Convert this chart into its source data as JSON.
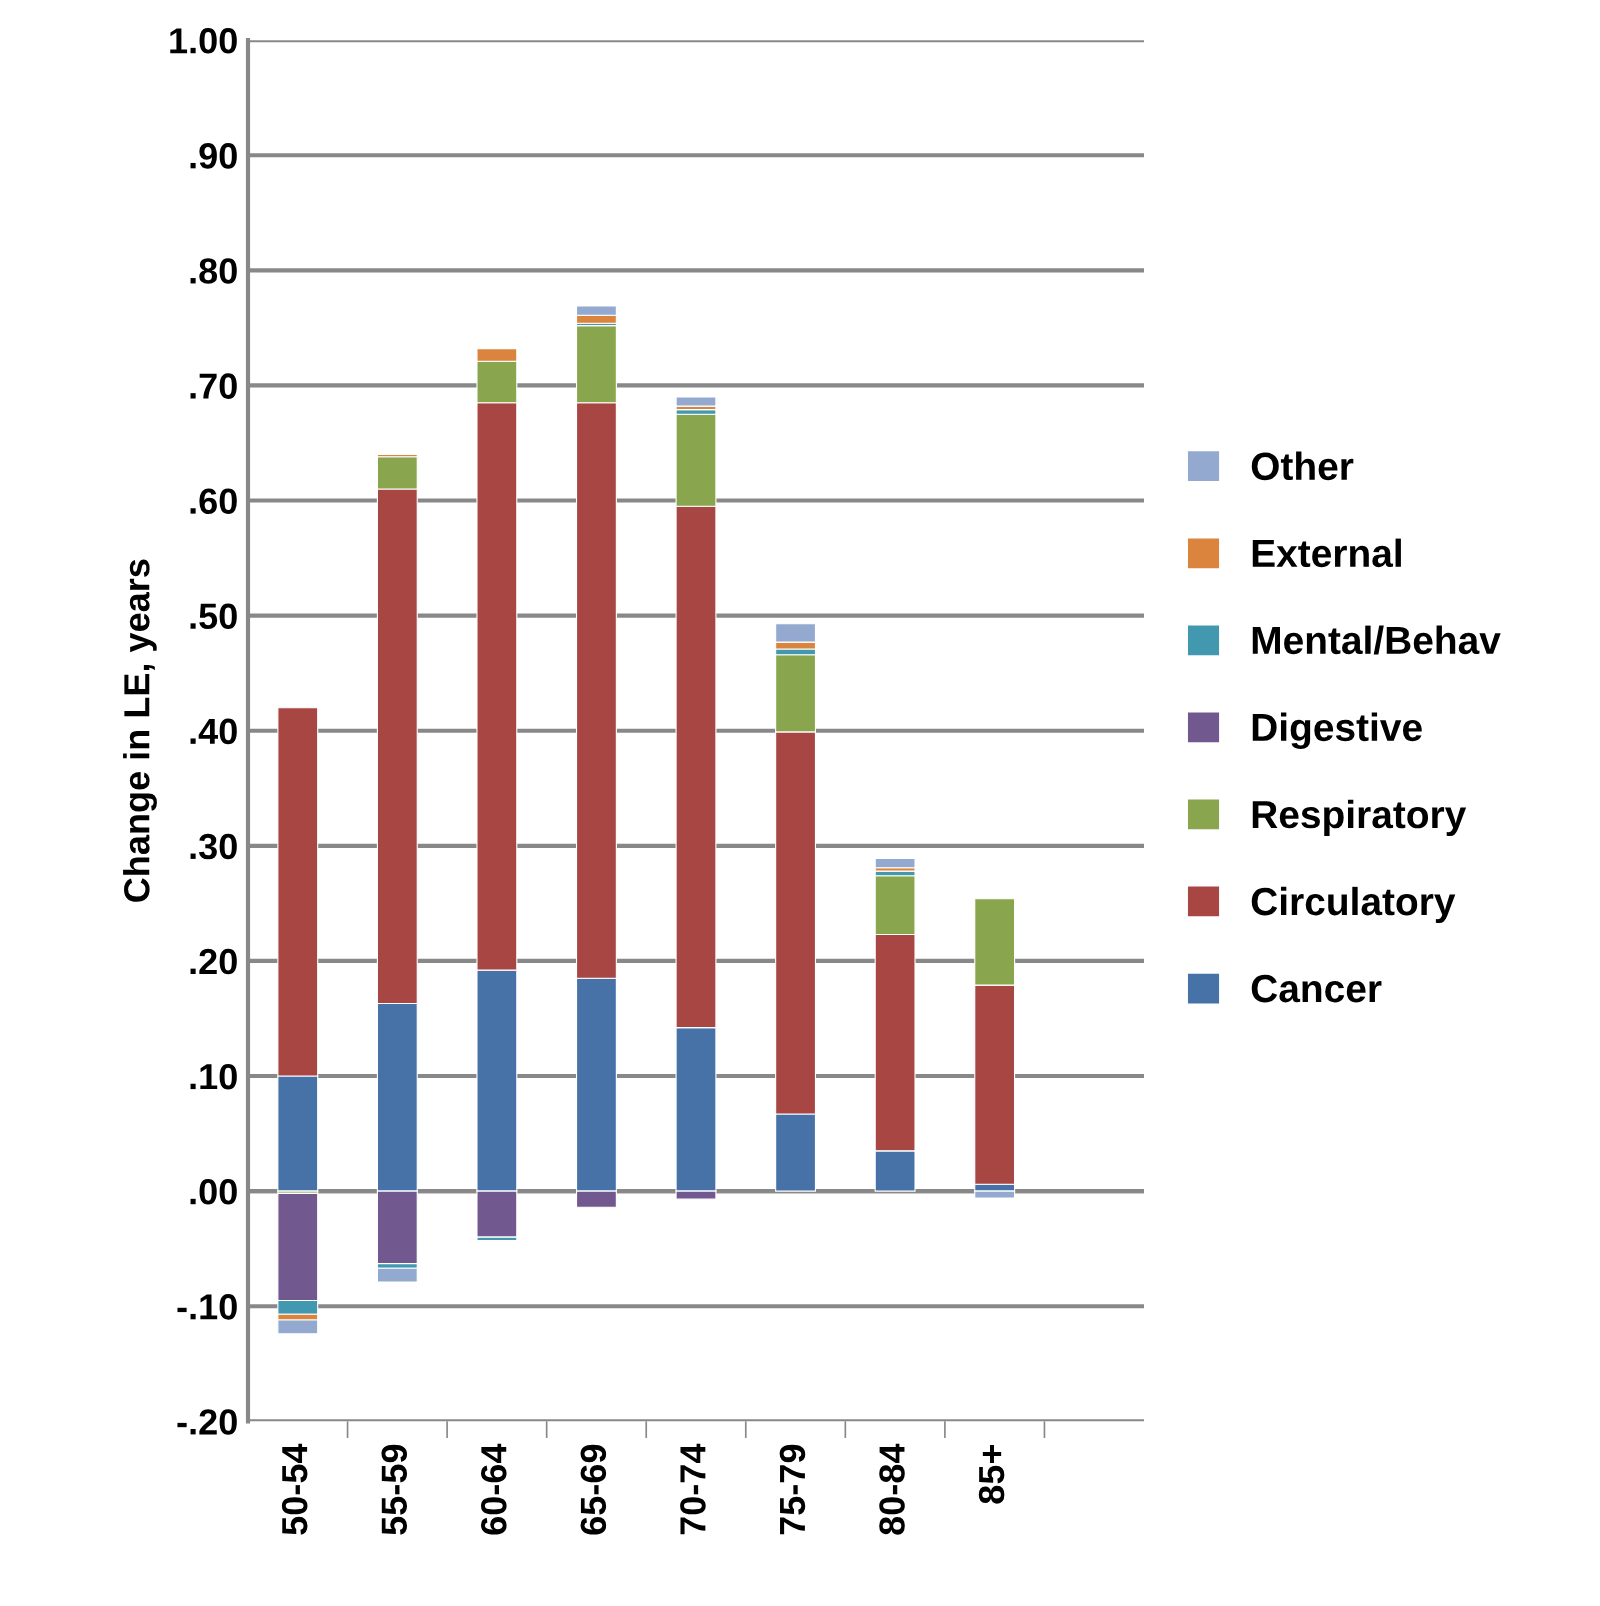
{
  "chart_data": {
    "type": "bar",
    "stacked": true,
    "ylabel": "Change in LE, years",
    "categories": [
      "50-54",
      "55-59",
      "60-64",
      "65-69",
      "70-74",
      "75-79",
      "80-84",
      "85+",
      null
    ],
    "series": [
      {
        "name": "Cancer",
        "color": "#4672a8",
        "values": [
          0.1,
          0.163,
          0.192,
          0.185,
          0.142,
          0.067,
          0.035,
          0.006,
          null
        ]
      },
      {
        "name": "Circulatory",
        "color": "#a84644",
        "values": [
          0.32,
          0.447,
          0.493,
          0.5,
          0.453,
          0.332,
          0.188,
          0.173,
          null
        ]
      },
      {
        "name": "Respiratory",
        "color": "#89a54e",
        "values": [
          -0.002,
          0.028,
          0.036,
          0.067,
          0.08,
          0.067,
          0.051,
          0.075,
          null
        ]
      },
      {
        "name": "Digestive",
        "color": "#71588f",
        "values": [
          -0.093,
          -0.063,
          -0.04,
          -0.014,
          -0.007,
          null,
          null,
          null,
          null
        ]
      },
      {
        "name": "Mental/Behav",
        "color": "#4198af",
        "values": [
          -0.012,
          -0.004,
          -0.003,
          0.002,
          0.004,
          0.005,
          0.004,
          null,
          null
        ]
      },
      {
        "name": "External",
        "color": "#db843d",
        "values": [
          -0.005,
          0.002,
          0.011,
          0.007,
          0.003,
          0.006,
          0.003,
          null,
          null
        ]
      },
      {
        "name": "Other",
        "color": "#93a9cf",
        "values": [
          -0.012,
          -0.012,
          null,
          0.008,
          0.008,
          0.016,
          0.008,
          -0.006,
          null
        ]
      }
    ],
    "ylim": [
      -0.2,
      1.0
    ],
    "yticks": [
      {
        "value": -0.2,
        "label": "-.20"
      },
      {
        "value": -0.1,
        "label": "-.10"
      },
      {
        "value": 0,
        "label": ".00"
      },
      {
        "value": 0.1,
        "label": ".10"
      },
      {
        "value": 0.2,
        "label": ".20"
      },
      {
        "value": 0.3,
        "label": ".30"
      },
      {
        "value": 0.4,
        "label": ".40"
      },
      {
        "value": 0.5,
        "label": ".50"
      },
      {
        "value": 0.6,
        "label": ".60"
      },
      {
        "value": 0.7,
        "label": ".70"
      },
      {
        "value": 0.8,
        "label": ".80"
      },
      {
        "value": 0.9,
        "label": ".90"
      },
      {
        "value": 1.0,
        "label": "1.00"
      }
    ],
    "grid": "y",
    "legend": "right"
  }
}
